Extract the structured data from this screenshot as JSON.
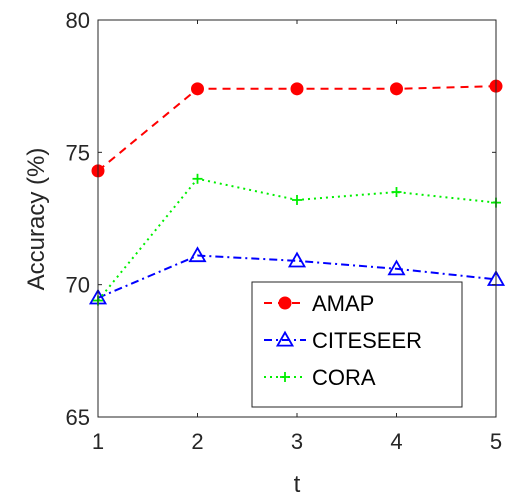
{
  "chart_data": {
    "type": "line",
    "xlabel": "t",
    "ylabel": "Accuracy (%)",
    "x": [
      1,
      2,
      3,
      4,
      5
    ],
    "xlim": [
      1,
      5
    ],
    "ylim": [
      65,
      80
    ],
    "xticks": [
      "1",
      "2",
      "3",
      "4",
      "5"
    ],
    "yticks": [
      "65",
      "70",
      "75",
      "80"
    ],
    "grid": false,
    "legend_position": "bottom-right",
    "series": [
      {
        "name": "AMAP",
        "values": [
          74.3,
          77.4,
          77.4,
          77.4,
          77.5
        ],
        "color": "#ff0000",
        "marker": "circle",
        "line_style": "dashed"
      },
      {
        "name": "CITESEER",
        "values": [
          69.5,
          71.1,
          70.9,
          70.6,
          70.2
        ],
        "color": "#0000ff",
        "marker": "triangle",
        "line_style": "dash-dot"
      },
      {
        "name": "CORA",
        "values": [
          69.4,
          74.0,
          73.2,
          73.5,
          73.1
        ],
        "color": "#00ee00",
        "marker": "plus",
        "line_style": "dotted"
      }
    ]
  }
}
